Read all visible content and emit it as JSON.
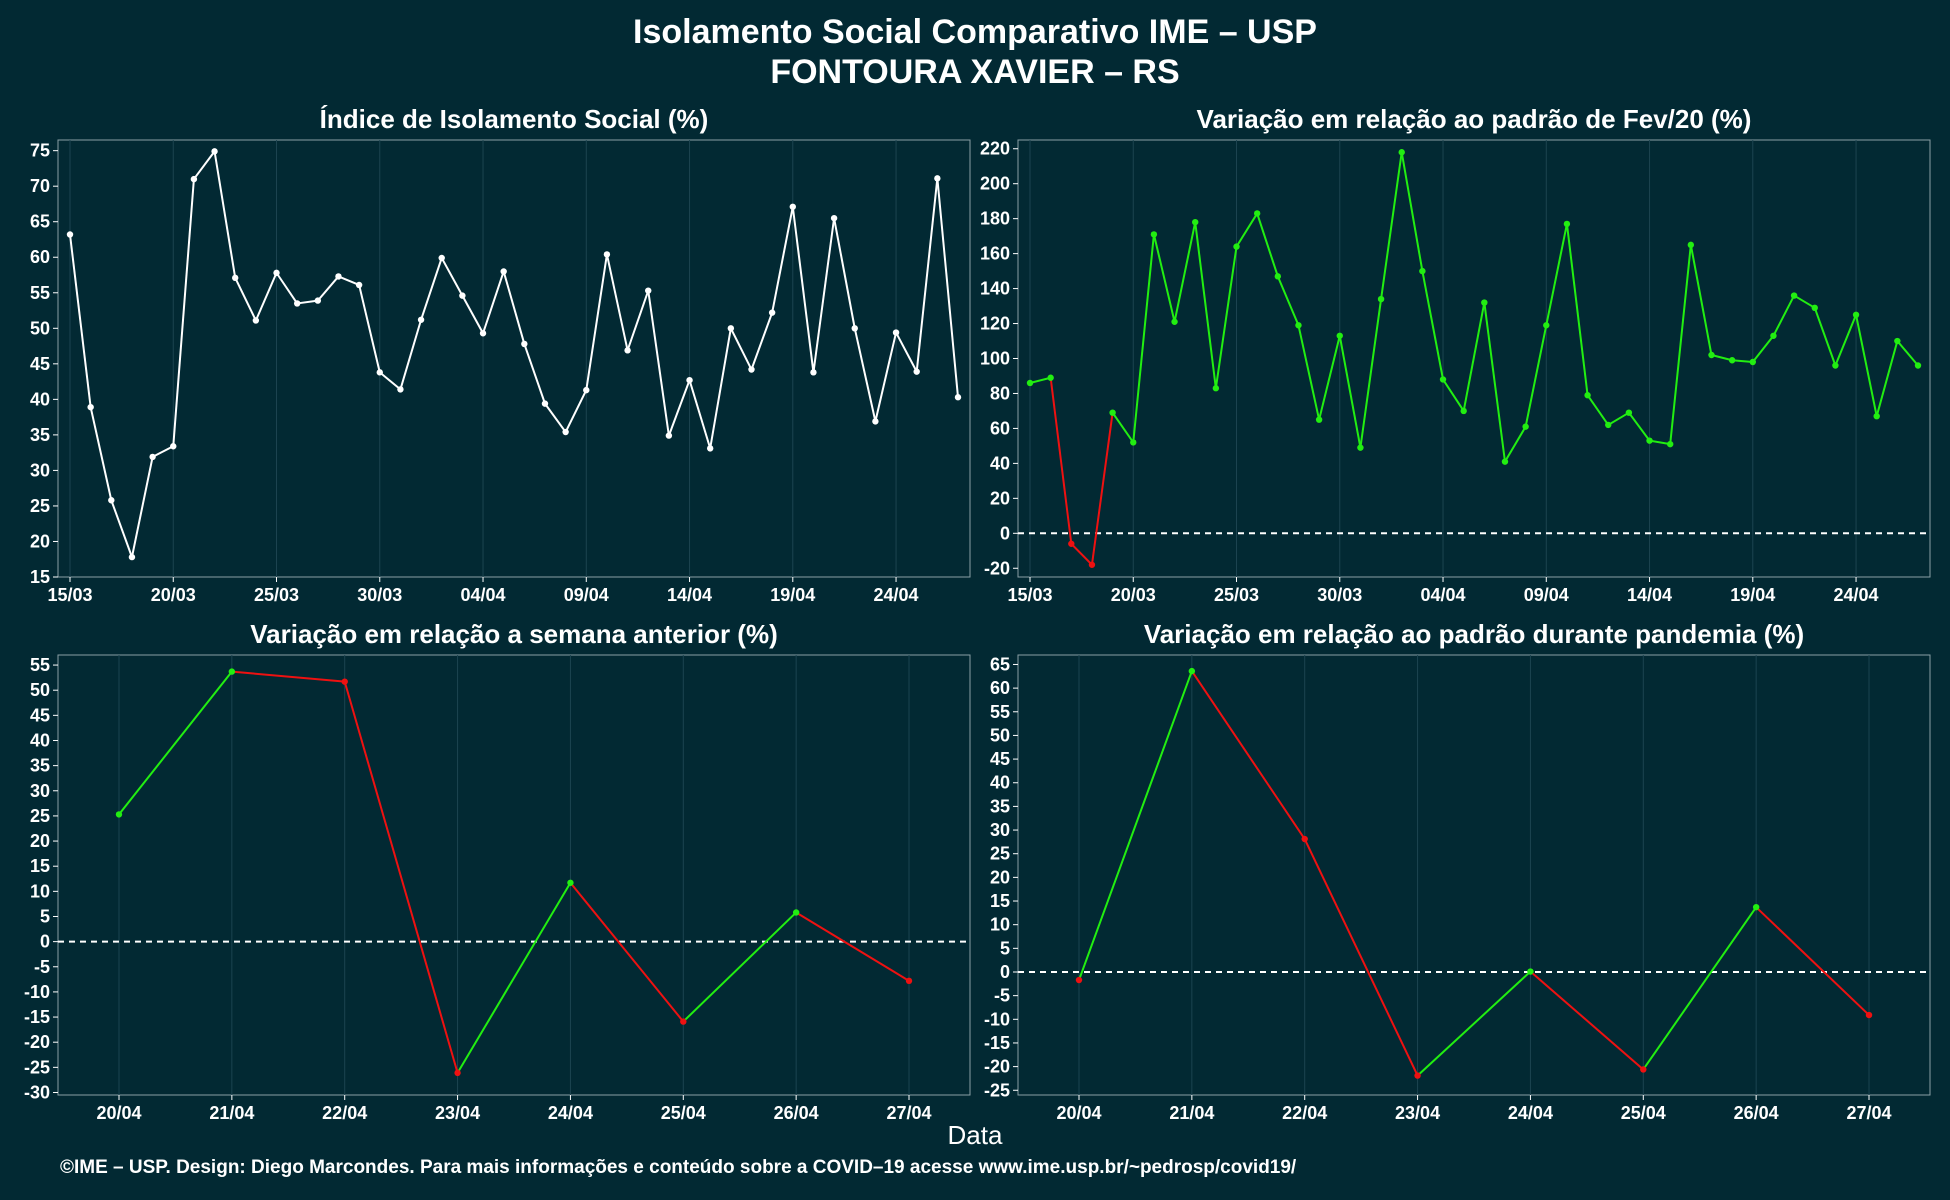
{
  "title": "Isolamento Social Comparativo IME – USP",
  "subtitle": "FONTOURA XAVIER – RS",
  "xlabel": "Data",
  "caption": "©IME – USP. Design: Diego Marcondes. Para mais informações e conteúdo sobre a COVID–19 acesse www.ime.usp.br/~pedrosp/covid19/",
  "colors": {
    "background": "#022933",
    "panel": "#022933",
    "white_line": "#ffffff",
    "green": "#22ee11",
    "red": "#ee1111",
    "grid": "#1c4450",
    "border": "#8aa0a6"
  },
  "chart_data": [
    {
      "type": "line",
      "title": "Índice de Isolamento Social (%)",
      "ylim": [
        15,
        76.5
      ],
      "yticks": [
        15,
        20,
        25,
        30,
        35,
        40,
        45,
        50,
        55,
        60,
        65,
        70,
        75
      ],
      "x_ticks": [
        "15/03",
        "20/03",
        "25/03",
        "30/03",
        "04/04",
        "09/04",
        "14/04",
        "19/04",
        "24/04"
      ],
      "x_start": "15/03",
      "color_mode": "white",
      "zero_line": false,
      "values": [
        63.2,
        38.9,
        25.8,
        17.8,
        31.9,
        33.4,
        71.0,
        74.9,
        57.1,
        51.1,
        57.8,
        53.5,
        53.9,
        57.3,
        56.1,
        43.8,
        41.4,
        51.2,
        59.9,
        54.6,
        49.3,
        58.0,
        47.8,
        39.4,
        35.4,
        41.3,
        60.4,
        46.9,
        55.3,
        34.9,
        42.7,
        33.1,
        50.0,
        44.2,
        52.2,
        67.1,
        43.8,
        65.5,
        50.0,
        36.9,
        49.4,
        43.9,
        71.1,
        40.3
      ]
    },
    {
      "type": "line",
      "title": "Variação em relação ao padrão de Fev/20 (%)",
      "ylim": [
        -25,
        225
      ],
      "yticks": [
        -20,
        0,
        20,
        40,
        60,
        80,
        100,
        120,
        140,
        160,
        180,
        200,
        220
      ],
      "x_ticks": [
        "15/03",
        "20/03",
        "25/03",
        "30/03",
        "04/04",
        "09/04",
        "14/04",
        "19/04",
        "24/04"
      ],
      "x_start": "15/03",
      "color_mode": "sign",
      "zero_line": true,
      "values": [
        86,
        89,
        -6,
        -18,
        69,
        52,
        171,
        121,
        178,
        83,
        164,
        183,
        147,
        119,
        65,
        113,
        49,
        134,
        218,
        150,
        88,
        70,
        132,
        41,
        61,
        119,
        177,
        79,
        62,
        69,
        53,
        51,
        165,
        102,
        99,
        98,
        113,
        136,
        129,
        96,
        125,
        67,
        110,
        96
      ]
    },
    {
      "type": "line",
      "title": "Variação em relação a semana anterior (%)",
      "ylim": [
        -30.5,
        57
      ],
      "yticks": [
        -30,
        -25,
        -20,
        -15,
        -10,
        -5,
        0,
        5,
        10,
        15,
        20,
        25,
        30,
        35,
        40,
        45,
        50,
        55
      ],
      "categories": [
        "20/04",
        "21/04",
        "22/04",
        "23/04",
        "24/04",
        "25/04",
        "26/04",
        "27/04"
      ],
      "color_mode": "trend",
      "zero_line": true,
      "values": [
        25.3,
        53.7,
        51.7,
        -26.1,
        11.7,
        -15.9,
        5.8,
        -7.8
      ]
    },
    {
      "type": "line",
      "title": "Variação em relação ao padrão durante pandemia (%)",
      "ylim": [
        -26,
        67
      ],
      "yticks": [
        -25,
        -20,
        -15,
        -10,
        -5,
        0,
        5,
        10,
        15,
        20,
        25,
        30,
        35,
        40,
        45,
        50,
        55,
        60,
        65
      ],
      "categories": [
        "20/04",
        "21/04",
        "22/04",
        "23/04",
        "24/04",
        "25/04",
        "26/04",
        "27/04"
      ],
      "color_mode": "trend",
      "zero_line": true,
      "values": [
        -1.7,
        63.6,
        28.1,
        -21.9,
        0.1,
        -20.6,
        13.7,
        -9.1
      ]
    }
  ]
}
